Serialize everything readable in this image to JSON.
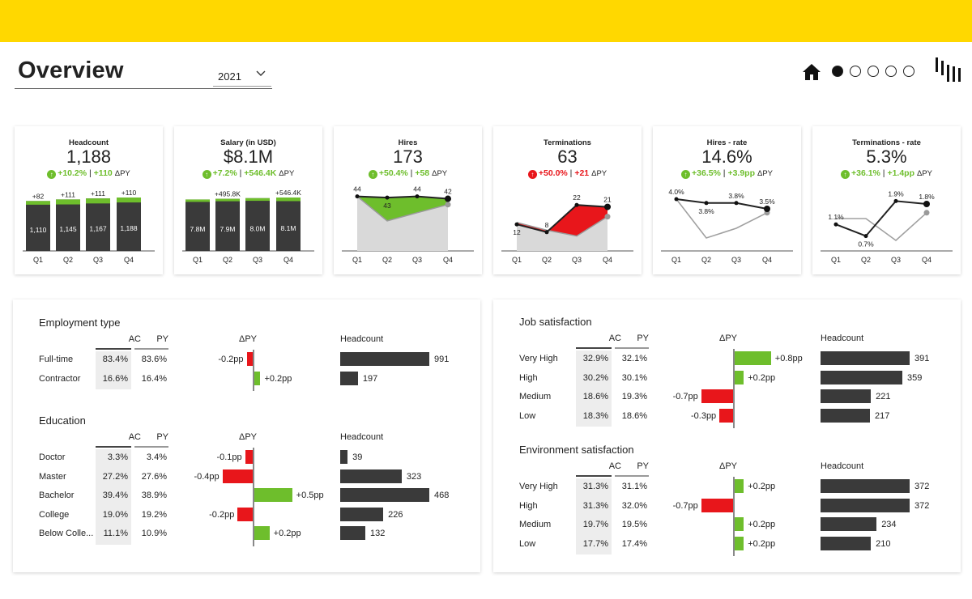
{
  "header": {
    "title": "Overview",
    "year": "2021",
    "brand_color": "#FFD800",
    "nav_pages": 5,
    "active_page": 0
  },
  "colors": {
    "positive": "#6EBE2C",
    "negative": "#E8161B",
    "actual": "#3A3A3A",
    "previous": "#A6A6A6"
  },
  "kpis": [
    {
      "title": "Headcount",
      "value": "1,188",
      "delta_pct": "+10.2%",
      "delta_abs": "+110",
      "delta_label": "ΔPY",
      "dir": "up",
      "chart_data": {
        "type": "bar",
        "categories": [
          "Q1",
          "Q2",
          "Q3",
          "Q4"
        ],
        "ac": [
          1110,
          1145,
          1167,
          1188
        ],
        "py": [
          1028,
          1034,
          1056,
          1078
        ],
        "value_labels": [
          "1,110",
          "1,145",
          "1,167",
          "1,188"
        ],
        "delta_labels": [
          "+82",
          "+111",
          "+111",
          "+110"
        ]
      }
    },
    {
      "title": "Salary (in USD)",
      "value": "$8.1M",
      "delta_pct": "+7.2%",
      "delta_abs": "+546.4K",
      "delta_label": "ΔPY",
      "dir": "up",
      "chart_data": {
        "type": "bar",
        "categories": [
          "Q1",
          "Q2",
          "Q3",
          "Q4"
        ],
        "ac": [
          7.8,
          7.9,
          8.0,
          8.1
        ],
        "py": [
          7.6,
          7.6,
          7.6,
          7.55
        ],
        "value_labels": [
          "7.8M",
          "7.9M",
          "8.0M",
          "8.1M"
        ],
        "delta_labels": [
          "",
          "+495.8K",
          "",
          "+546.4K"
        ]
      }
    },
    {
      "title": "Hires",
      "value": "173",
      "delta_pct": "+50.4%",
      "delta_abs": "+58",
      "delta_label": "ΔPY",
      "dir": "up",
      "chart_data": {
        "type": "area",
        "categories": [
          "Q1",
          "Q2",
          "Q3",
          "Q4"
        ],
        "ac": [
          44,
          43,
          44,
          42
        ],
        "py": [
          44,
          23,
          30,
          37
        ],
        "value_labels": [
          "44",
          "43",
          "44",
          "42"
        ],
        "ymax": 50
      }
    },
    {
      "title": "Terminations",
      "value": "63",
      "delta_pct": "+50.0%",
      "delta_abs": "+21",
      "delta_label": "ΔPY",
      "dir": "upbad",
      "chart_data": {
        "type": "area",
        "categories": [
          "Q1",
          "Q2",
          "Q3",
          "Q4"
        ],
        "ac": [
          12,
          8,
          22,
          21
        ],
        "py": [
          13,
          9,
          6,
          16
        ],
        "value_labels": [
          "12",
          "8",
          "22",
          "21"
        ],
        "ymax": 30
      }
    },
    {
      "title": "Hires - rate",
      "value": "14.6%",
      "delta_pct": "+36.5%",
      "delta_abs": "+3.9pp",
      "delta_label": "ΔPY",
      "dir": "up",
      "chart_data": {
        "type": "line",
        "categories": [
          "Q1",
          "Q2",
          "Q3",
          "Q4"
        ],
        "ac": [
          4.0,
          3.8,
          3.8,
          3.5
        ],
        "py": [
          4.0,
          2.0,
          2.5,
          3.3
        ],
        "value_labels": [
          "4.0%",
          "3.8%",
          "3.8%",
          "3.5%"
        ],
        "ymin": 1.5,
        "ymax": 4.5
      }
    },
    {
      "title": "Terminations - rate",
      "value": "5.3%",
      "delta_pct": "+36.1%",
      "delta_abs": "+1.4pp",
      "delta_label": "ΔPY",
      "dir": "up",
      "chart_data": {
        "type": "line",
        "categories": [
          "Q1",
          "Q2",
          "Q3",
          "Q4"
        ],
        "ac": [
          1.1,
          0.7,
          1.9,
          1.8
        ],
        "py": [
          1.3,
          1.3,
          0.55,
          1.5
        ],
        "value_labels": [
          "1.1%",
          "0.7%",
          "1.9%",
          "1.8%"
        ],
        "ymin": 0.3,
        "ymax": 2.3
      }
    }
  ],
  "tables": [
    {
      "title": "Employment type",
      "col_ac": "AC",
      "col_py": "PY",
      "col_dpy": "ΔPY",
      "col_head": "Headcount",
      "scale_dpy": 1.5,
      "scale_head": 991,
      "rows": [
        {
          "label": "Full-time",
          "ac": "83.4%",
          "py": "83.6%",
          "dpy": -0.2,
          "dpy_label": "-0.2pp",
          "head": 991
        },
        {
          "label": "Contractor",
          "ac": "16.6%",
          "py": "16.4%",
          "dpy": 0.2,
          "dpy_label": "+0.2pp",
          "head": 197
        }
      ]
    },
    {
      "title": "Education",
      "col_ac": "AC",
      "col_py": "PY",
      "col_dpy": "ΔPY",
      "col_head": "Headcount",
      "scale_dpy": 0.6,
      "scale_head": 468,
      "rows": [
        {
          "label": "Doctor",
          "ac": "3.3%",
          "py": "3.4%",
          "dpy": -0.1,
          "dpy_label": "-0.1pp",
          "head": 39
        },
        {
          "label": "Master",
          "ac": "27.2%",
          "py": "27.6%",
          "dpy": -0.4,
          "dpy_label": "-0.4pp",
          "head": 323
        },
        {
          "label": "Bachelor",
          "ac": "39.4%",
          "py": "38.9%",
          "dpy": 0.5,
          "dpy_label": "+0.5pp",
          "head": 468
        },
        {
          "label": "College",
          "ac": "19.0%",
          "py": "19.2%",
          "dpy": -0.2,
          "dpy_label": "-0.2pp",
          "head": 226
        },
        {
          "label": "Below Colle...",
          "ac": "11.1%",
          "py": "10.9%",
          "dpy": 0.2,
          "dpy_label": "+0.2pp",
          "head": 132
        }
      ]
    },
    {
      "title": "Job satisfaction",
      "col_ac": "AC",
      "col_py": "PY",
      "col_dpy": "ΔPY",
      "col_head": "Headcount",
      "scale_dpy": 1.0,
      "scale_head": 391,
      "rows": [
        {
          "label": "Very High",
          "ac": "32.9%",
          "py": "32.1%",
          "dpy": 0.8,
          "dpy_label": "+0.8pp",
          "head": 391
        },
        {
          "label": "High",
          "ac": "30.2%",
          "py": "30.1%",
          "dpy": 0.2,
          "dpy_label": "+0.2pp",
          "head": 359
        },
        {
          "label": "Medium",
          "ac": "18.6%",
          "py": "19.3%",
          "dpy": -0.7,
          "dpy_label": "-0.7pp",
          "head": 221
        },
        {
          "label": "Low",
          "ac": "18.3%",
          "py": "18.6%",
          "dpy": -0.3,
          "dpy_label": "-0.3pp",
          "head": 217
        }
      ]
    },
    {
      "title": "Environment satisfaction",
      "col_ac": "AC",
      "col_py": "PY",
      "col_dpy": "ΔPY",
      "col_head": "Headcount",
      "scale_dpy": 1.0,
      "scale_head": 372,
      "rows": [
        {
          "label": "Very High",
          "ac": "31.3%",
          "py": "31.1%",
          "dpy": 0.2,
          "dpy_label": "+0.2pp",
          "head": 372
        },
        {
          "label": "High",
          "ac": "31.3%",
          "py": "32.0%",
          "dpy": -0.7,
          "dpy_label": "-0.7pp",
          "head": 372
        },
        {
          "label": "Medium",
          "ac": "19.7%",
          "py": "19.5%",
          "dpy": 0.2,
          "dpy_label": "+0.2pp",
          "head": 234
        },
        {
          "label": "Low",
          "ac": "17.7%",
          "py": "17.4%",
          "dpy": 0.2,
          "dpy_label": "+0.2pp",
          "head": 210
        }
      ]
    }
  ]
}
